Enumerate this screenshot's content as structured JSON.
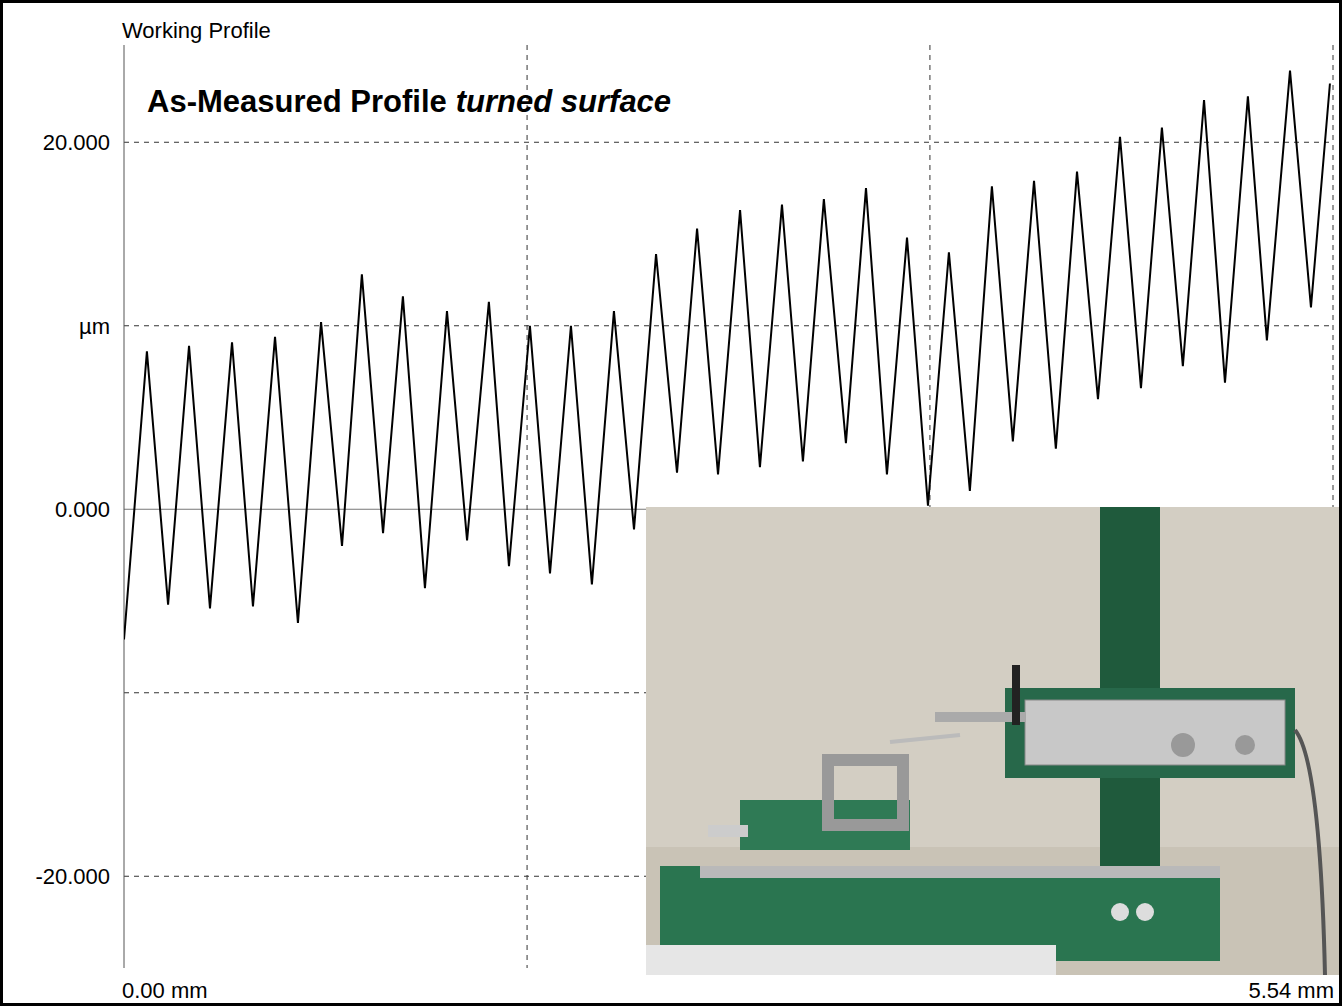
{
  "chart_data": {
    "type": "line",
    "title": "Working Profile",
    "annotations": [
      "As-Measured Profile",
      "turned surface"
    ],
    "color": "#000000",
    "grid": true,
    "xlim": [
      0,
      5.54
    ],
    "xticks": [
      {
        "value": 0,
        "label": "0.00 mm"
      },
      {
        "value": 1.847,
        "label": null
      },
      {
        "value": 3.693,
        "label": null
      },
      {
        "value": 5.54,
        "label": "5.54 mm"
      }
    ],
    "ylim": [
      -25,
      25.3
    ],
    "yticks": [
      {
        "value": 20,
        "label": "20.000"
      },
      {
        "value": 10,
        "label": "µm"
      },
      {
        "value": 0,
        "label": "0.000"
      },
      {
        "value": -10,
        "label": null
      },
      {
        "value": -20,
        "label": "-20.000"
      }
    ],
    "x": [
      0.0,
      0.105,
      0.202,
      0.298,
      0.394,
      0.495,
      0.591,
      0.692,
      0.797,
      0.903,
      0.999,
      1.09,
      1.187,
      1.278,
      1.379,
      1.48,
      1.572,
      1.672,
      1.764,
      1.86,
      1.952,
      2.048,
      2.144,
      2.245,
      2.337,
      2.438,
      2.534,
      2.626,
      2.722,
      2.823,
      2.914,
      3.015,
      3.111,
      3.207,
      3.308,
      3.4,
      3.496,
      3.588,
      3.684,
      3.78,
      3.876,
      3.977,
      4.073,
      4.17,
      4.27,
      4.367,
      4.463,
      4.564,
      4.66,
      4.756,
      4.852,
      4.949,
      5.045,
      5.15,
      5.237,
      5.343,
      5.439,
      5.526
    ],
    "values": [
      -7.1,
      8.6,
      -5.2,
      8.9,
      -5.4,
      9.1,
      -5.3,
      9.4,
      -6.2,
      10.2,
      -2.0,
      12.8,
      -1.3,
      11.6,
      -4.3,
      10.8,
      -1.7,
      11.3,
      -3.1,
      10.0,
      -3.5,
      10.0,
      -4.1,
      10.8,
      -1.1,
      13.9,
      2.0,
      15.3,
      1.9,
      16.3,
      2.3,
      16.6,
      2.6,
      16.9,
      3.6,
      17.5,
      1.9,
      14.8,
      0.2,
      14.0,
      1.0,
      17.6,
      3.7,
      17.9,
      3.3,
      18.4,
      6.0,
      20.3,
      6.6,
      20.8,
      7.8,
      22.3,
      6.9,
      22.5,
      9.2,
      23.9,
      11.0,
      23.2
    ]
  }
}
